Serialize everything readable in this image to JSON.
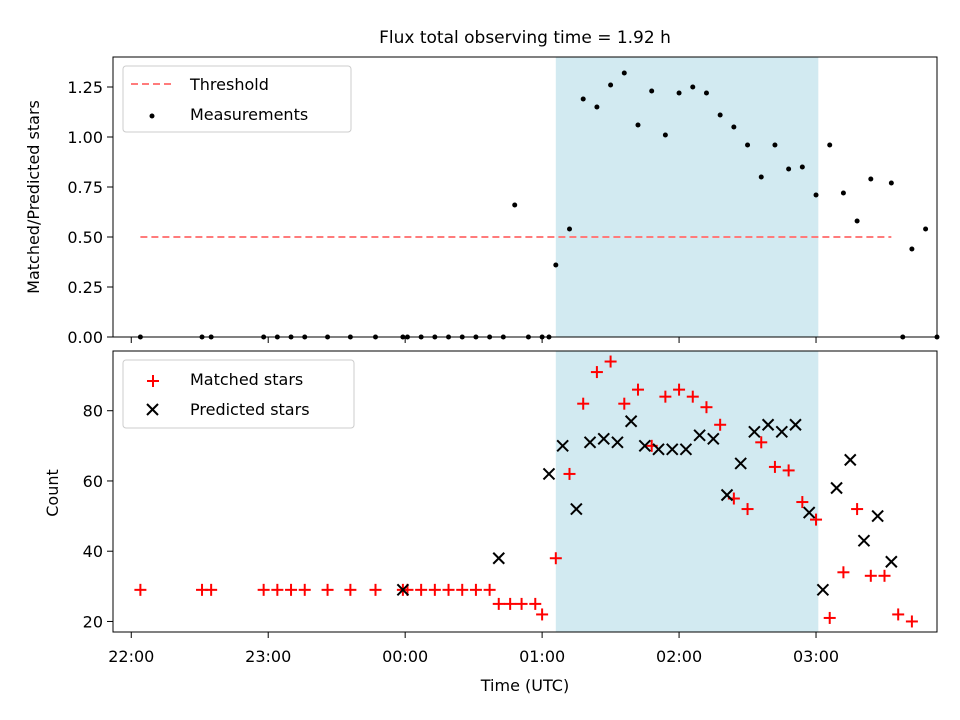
{
  "title": "Flux total observing time = 1.92 h",
  "chart_data": [
    {
      "type": "scatter",
      "ylabel": "Matched/Predicted stars",
      "ylim": [
        0,
        1.4
      ],
      "yticks": [
        0.0,
        0.25,
        0.5,
        0.75,
        1.0,
        1.25
      ],
      "ytick_labels": [
        "0.00",
        "0.25",
        "0.50",
        "0.75",
        "1.00",
        "1.25"
      ],
      "legend_position": "top-left",
      "shaded_interval": [
        "01:06",
        "03:01"
      ],
      "series": [
        {
          "name": "Threshold",
          "style": "dashed-line",
          "color": "#ff7b7b",
          "x": [
            "22:04",
            "03:33"
          ],
          "y": [
            0.5,
            0.5
          ]
        },
        {
          "name": "Measurements",
          "style": "dot",
          "color": "#000000",
          "x": [
            "22:04",
            "22:31",
            "22:35",
            "22:58",
            "23:04",
            "23:10",
            "23:16",
            "23:26",
            "23:36",
            "23:47",
            "23:59",
            "00:01",
            "00:07",
            "00:13",
            "00:19",
            "00:25",
            "00:31",
            "00:37",
            "00:43",
            "00:48",
            "00:54",
            "01:00",
            "01:03",
            "01:06",
            "01:12",
            "01:18",
            "01:24",
            "01:30",
            "01:36",
            "01:42",
            "01:48",
            "01:54",
            "02:00",
            "02:06",
            "02:12",
            "02:18",
            "02:24",
            "02:30",
            "02:36",
            "02:42",
            "02:48",
            "02:54",
            "03:00",
            "03:06",
            "03:12",
            "03:18",
            "03:24",
            "03:33",
            "03:38",
            "03:42",
            "03:48",
            "03:53"
          ],
          "y": [
            0,
            0,
            0,
            0,
            0,
            0,
            0,
            0,
            0,
            0,
            0,
            0,
            0,
            0,
            0,
            0,
            0,
            0,
            0,
            0.66,
            0,
            0,
            0,
            0.36,
            0.54,
            1.19,
            1.15,
            1.26,
            1.32,
            1.06,
            1.23,
            1.01,
            1.22,
            1.25,
            1.22,
            1.11,
            1.05,
            0.96,
            0.8,
            0.96,
            0.84,
            0.85,
            0.71,
            0.96,
            0.72,
            0.58,
            0.79,
            0.77,
            0,
            0.44,
            0.54,
            0
          ]
        }
      ]
    },
    {
      "type": "scatter",
      "xlabel": "Time (UTC)",
      "ylabel": "Count",
      "xlim": [
        "21:52",
        "03:53"
      ],
      "ylim": [
        17,
        97
      ],
      "xtick_labels": [
        "22:00",
        "23:00",
        "00:00",
        "01:00",
        "02:00",
        "03:00"
      ],
      "yticks": [
        20,
        40,
        60,
        80
      ],
      "legend_position": "top-left",
      "shaded_interval": [
        "01:06",
        "03:01"
      ],
      "series": [
        {
          "name": "Matched stars",
          "marker": "plus",
          "color": "#ff0000",
          "x": [
            "22:04",
            "22:31",
            "22:35",
            "22:58",
            "23:04",
            "23:10",
            "23:16",
            "23:26",
            "23:36",
            "23:47",
            "23:59",
            "00:01",
            "00:07",
            "00:13",
            "00:19",
            "00:25",
            "00:31",
            "00:37",
            "00:41",
            "00:46",
            "00:51",
            "00:57",
            "01:00",
            "01:06",
            "01:12",
            "01:18",
            "01:24",
            "01:30",
            "01:36",
            "01:42",
            "01:48",
            "01:54",
            "02:00",
            "02:06",
            "02:12",
            "02:18",
            "02:24",
            "02:30",
            "02:36",
            "02:42",
            "02:48",
            "02:54",
            "03:00",
            "03:06",
            "03:12",
            "03:18",
            "03:24",
            "03:30",
            "03:36",
            "03:42"
          ],
          "y": [
            29,
            29,
            29,
            29,
            29,
            29,
            29,
            29,
            29,
            29,
            29,
            29,
            29,
            29,
            29,
            29,
            29,
            29,
            25,
            25,
            25,
            25,
            22,
            38,
            62,
            82,
            91,
            94,
            82,
            86,
            70,
            84,
            86,
            84,
            81,
            76,
            55,
            52,
            71,
            64,
            63,
            54,
            49,
            21,
            34,
            52,
            33,
            33,
            22,
            20
          ]
        },
        {
          "name": "Predicted stars",
          "marker": "cross",
          "color": "#000000",
          "x": [
            "23:59",
            "00:41",
            "01:03",
            "01:09",
            "01:15",
            "01:21",
            "01:27",
            "01:33",
            "01:39",
            "01:45",
            "01:51",
            "01:57",
            "02:03",
            "02:09",
            "02:15",
            "02:21",
            "02:27",
            "02:33",
            "02:39",
            "02:45",
            "02:51",
            "02:57",
            "03:03",
            "03:09",
            "03:15",
            "03:21",
            "03:27",
            "03:33"
          ],
          "y": [
            29,
            38,
            62,
            70,
            52,
            71,
            72,
            71,
            77,
            70,
            69,
            69,
            69,
            73,
            72,
            56,
            65,
            74,
            76,
            74,
            76,
            51,
            29,
            58,
            66,
            43,
            50,
            37
          ]
        }
      ]
    }
  ]
}
